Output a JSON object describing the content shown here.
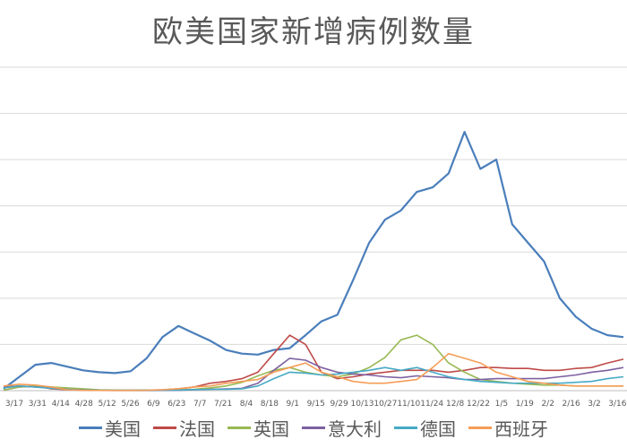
{
  "chart_data": {
    "type": "line",
    "title": "欧美国家新增病例数量",
    "xlabel": "",
    "ylabel": "",
    "ylim": [
      0,
      350000
    ],
    "grid": true,
    "legend_position": "bottom",
    "gridlines": [
      50000,
      100000,
      150000,
      200000,
      250000,
      300000,
      350000
    ],
    "x_ticks": [
      "3/17",
      "3/31",
      "4/14",
      "4/28",
      "5/12",
      "5/26",
      "6/9",
      "6/23",
      "7/7",
      "7/21",
      "8/4",
      "8/18",
      "9/1",
      "9/15",
      "9/29",
      "10/13",
      "10/27",
      "11/10",
      "11/24",
      "12/8",
      "12/22",
      "1/5",
      "1/19",
      "2/2",
      "2/16",
      "3/2",
      "3/16"
    ],
    "series": [
      {
        "name": "美国",
        "color": "#4a7ebb",
        "values": [
          2000,
          15000,
          28000,
          30000,
          26000,
          22000,
          20000,
          19000,
          21000,
          35000,
          58000,
          70000,
          62000,
          54000,
          44000,
          40000,
          39000,
          44000,
          46000,
          60000,
          75000,
          82000,
          120000,
          160000,
          185000,
          195000,
          215000,
          220000,
          235000,
          280000,
          240000,
          250000,
          180000,
          160000,
          140000,
          100000,
          80000,
          67000,
          60000,
          58000
        ]
      },
      {
        "name": "法国",
        "color": "#be4b48",
        "values": [
          500,
          4000,
          5000,
          2000,
          1000,
          500,
          500,
          500,
          500,
          600,
          1000,
          2000,
          4000,
          8000,
          10000,
          13000,
          20000,
          40000,
          60000,
          50000,
          20000,
          13000,
          15000,
          18000,
          20000,
          22000,
          22000,
          22000,
          20000,
          22000,
          25000,
          25000,
          24000,
          24000,
          22000,
          22000,
          24000,
          25000,
          30000,
          34000
        ]
      },
      {
        "name": "英国",
        "color": "#98b954",
        "values": [
          500,
          4000,
          5000,
          4000,
          3000,
          2000,
          1000,
          700,
          600,
          600,
          700,
          1000,
          1500,
          3000,
          5000,
          9000,
          16000,
          22000,
          25000,
          20000,
          17000,
          15000,
          18000,
          25000,
          36000,
          55000,
          60000,
          50000,
          30000,
          20000,
          12000,
          10000,
          8000,
          7000,
          6000,
          6000,
          5000,
          5000,
          5000,
          5000
        ]
      },
      {
        "name": "意大利",
        "color": "#7d60a0",
        "values": [
          4000,
          5000,
          4000,
          3000,
          1500,
          800,
          300,
          200,
          200,
          200,
          300,
          400,
          1000,
          1500,
          1800,
          2500,
          8000,
          22000,
          35000,
          33000,
          25000,
          20000,
          18000,
          17000,
          15000,
          14000,
          16000,
          15000,
          14000,
          12000,
          12000,
          13000,
          13000,
          13000,
          13000,
          15000,
          17000,
          20000,
          22000,
          25000
        ]
      },
      {
        "name": "德国",
        "color": "#46aac5",
        "values": [
          3000,
          5000,
          4000,
          2500,
          1500,
          700,
          500,
          400,
          400,
          400,
          500,
          700,
          1200,
          1500,
          1500,
          2000,
          5000,
          13000,
          20000,
          19000,
          17000,
          18000,
          20000,
          22000,
          25000,
          22000,
          25000,
          20000,
          15000,
          12000,
          10000,
          9000,
          8000,
          8000,
          8000,
          8000,
          9000,
          10000,
          13000,
          15000
        ]
      },
      {
        "name": "西班牙",
        "color": "#f59d56",
        "values": [
          5000,
          7000,
          6000,
          4000,
          1000,
          400,
          300,
          300,
          300,
          400,
          1000,
          2000,
          4000,
          5000,
          8000,
          10000,
          12000,
          20000,
          25000,
          30000,
          20000,
          15000,
          10000,
          8000,
          8000,
          10000,
          12000,
          25000,
          40000,
          35000,
          30000,
          20000,
          15000,
          10000,
          8000,
          6000,
          5000,
          5000,
          5000,
          5000
        ]
      }
    ]
  }
}
